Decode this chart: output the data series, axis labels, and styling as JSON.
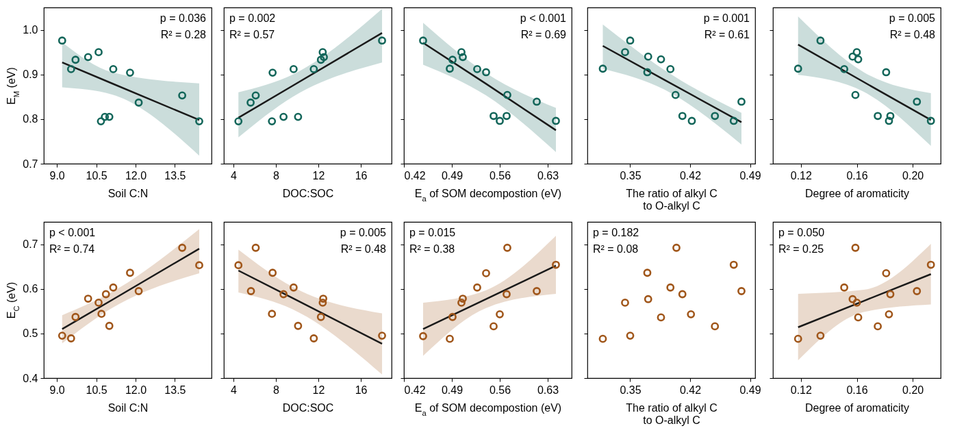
{
  "chart_data": [
    {
      "type": "scatter",
      "ylabel": "E$_{M}$ (eV)",
      "xlabel": "Soil C:N",
      "xlim": [
        8.5,
        14.9
      ],
      "xticks": [
        {
          "value": 9,
          "label": "9.0"
        },
        10.5,
        {
          "value": 12,
          "label": "12.0"
        },
        13.5
      ],
      "ylim": [
        0.7,
        1.05
      ],
      "yticks": [
        0.7,
        0.8,
        0.9,
        {
          "value": 1,
          "label": "1.0"
        }
      ],
      "annotations": [
        "p = 0.036",
        "R² = 0.28"
      ],
      "series": [
        {
          "marker": "circle",
          "color": "#13665a",
          "x": [
            9.2,
            9.54,
            9.71,
            10.19,
            10.59,
            10.68,
            10.83,
            11.0,
            11.15,
            11.79,
            12.12,
            13.78,
            14.43
          ],
          "values": [
            0.976,
            0.912,
            0.933,
            0.939,
            0.95,
            0.795,
            0.805,
            0.805,
            0.912,
            0.904,
            0.837,
            0.853,
            0.795
          ]
        },
        {
          "type": "line",
          "color": "#1a1a1a",
          "x": [
            9.2,
            11.1,
            14.43
          ],
          "values": [
            0.927,
            0.88,
            0.798
          ],
          "lower": [
            0.871,
            0.855,
            0.718
          ],
          "upper": [
            0.972,
            0.905,
            0.88
          ]
        }
      ]
    },
    {
      "type": "scatter",
      "xlabel": "DOC:SOC",
      "xlim": [
        3.1,
        18.9
      ],
      "xticks": [
        4,
        8,
        12,
        16
      ],
      "ylim": [
        0.7,
        1.05
      ],
      "yticks": [
        0.7,
        0.8,
        0.9,
        1
      ],
      "tick_labels": "x",
      "annotations": [
        "p = 0.002",
        "R² = 0.57"
      ],
      "series": [
        {
          "marker": "circle",
          "color": "#13665a",
          "x": [
            4.47,
            5.62,
            6.1,
            7.69,
            7.63,
            8.72,
            9.67,
            10.09,
            11.57,
            12.41,
            12.24,
            12.52,
            18.0
          ],
          "values": [
            0.795,
            0.837,
            0.853,
            0.904,
            0.795,
            0.805,
            0.912,
            0.805,
            0.912,
            0.95,
            0.933,
            0.939,
            0.976
          ]
        },
        {
          "type": "line",
          "color": "#1a1a1a",
          "x": [
            4.47,
            9.6,
            18.0
          ],
          "values": [
            0.803,
            0.875,
            0.993
          ],
          "lower": [
            0.759,
            0.85,
            0.927
          ],
          "upper": [
            0.86,
            0.9,
            1.047
          ]
        }
      ]
    },
    {
      "type": "scatter",
      "xlabel": "E$_{a}$ of SOM decompostion (eV)",
      "xlim": [
        0.42,
        0.665
      ],
      "xticks": [
        0.42,
        0.49,
        0.56,
        0.63
      ],
      "ylim": [
        0.7,
        1.05
      ],
      "yticks": [
        0.7,
        0.8,
        0.9,
        1
      ],
      "tick_labels": "x",
      "annotations": [
        "p < 0.001",
        "R² = 0.69"
      ],
      "series": [
        {
          "marker": "circle",
          "color": "#13665a",
          "x": [
            0.448,
            0.487,
            0.491,
            0.504,
            0.506,
            0.527,
            0.54,
            0.571,
            0.551,
            0.56,
            0.57,
            0.614,
            0.642
          ],
          "values": [
            0.976,
            0.913,
            0.933,
            0.95,
            0.939,
            0.912,
            0.905,
            0.854,
            0.807,
            0.796,
            0.807,
            0.839,
            0.796
          ]
        },
        {
          "type": "line",
          "color": "#1a1a1a",
          "x": [
            0.448,
            0.54,
            0.642
          ],
          "values": [
            0.971,
            0.879,
            0.775
          ],
          "lower": [
            0.922,
            0.853,
            0.726
          ],
          "upper": [
            1.016,
            0.903,
            0.825
          ]
        }
      ]
    },
    {
      "type": "scatter",
      "xlabel": "The ratio of alkyl C\nto O-alkyl C",
      "xlim": [
        0.3,
        0.496
      ],
      "xticks": [
        0.35,
        0.42,
        0.49
      ],
      "ylim": [
        0.7,
        1.05
      ],
      "yticks": [
        0.7,
        0.8,
        0.9,
        1
      ],
      "tick_labels": "x",
      "annotations": [
        "p = 0.001",
        "R² = 0.61"
      ],
      "series": [
        {
          "marker": "circle",
          "color": "#13665a",
          "x": [
            0.318,
            0.344,
            0.35,
            0.371,
            0.37,
            0.386,
            0.397,
            0.403,
            0.411,
            0.422,
            0.449,
            0.471,
            0.48
          ],
          "values": [
            0.913,
            0.95,
            0.976,
            0.94,
            0.905,
            0.934,
            0.912,
            0.854,
            0.807,
            0.796,
            0.807,
            0.796,
            0.839
          ]
        },
        {
          "type": "line",
          "color": "#1a1a1a",
          "x": [
            0.318,
            0.39,
            0.48
          ],
          "values": [
            0.964,
            0.888,
            0.793
          ],
          "lower": [
            0.913,
            0.866,
            0.743
          ],
          "upper": [
            1.012,
            0.91,
            0.814
          ]
        }
      ]
    },
    {
      "type": "scatter",
      "xlabel": "Degree of aromaticity",
      "xlim": [
        0.1,
        0.22
      ],
      "xticks": [
        0.12,
        0.16,
        {
          "value": 0.2,
          "label": "0.20"
        }
      ],
      "ylim": [
        0.7,
        1.05
      ],
      "yticks": [
        0.7,
        0.8,
        0.9,
        1
      ],
      "tick_labels": "x",
      "annotations": [
        "p = 0.005",
        "R² = 0.48"
      ],
      "series": [
        {
          "marker": "circle",
          "color": "#13665a",
          "x": [
            0.118,
            0.134,
            0.151,
            0.16,
            0.157,
            0.161,
            0.159,
            0.181,
            0.175,
            0.184,
            0.183,
            0.203,
            0.213
          ],
          "values": [
            0.913,
            0.976,
            0.912,
            0.95,
            0.94,
            0.934,
            0.854,
            0.905,
            0.807,
            0.807,
            0.796,
            0.839,
            0.796
          ]
        },
        {
          "type": "line",
          "color": "#1a1a1a",
          "x": [
            0.118,
            0.165,
            0.213
          ],
          "values": [
            0.967,
            0.883,
            0.798
          ],
          "lower": [
            0.899,
            0.861,
            0.74
          ],
          "upper": [
            1.03,
            0.905,
            0.858
          ]
        }
      ]
    },
    {
      "type": "scatter",
      "ylabel": "E$_{C}$ (eV)",
      "xlabel": "Soil C:N",
      "xlim": [
        8.5,
        14.9
      ],
      "xticks": [
        {
          "value": 9,
          "label": "9.0"
        },
        10.5,
        {
          "value": 12,
          "label": "12.0"
        },
        13.5
      ],
      "ylim": [
        0.4,
        0.75
      ],
      "yticks": [
        0.4,
        0.5,
        0.6,
        0.7
      ],
      "annotations": [
        "p < 0.001",
        "R² = 0.74"
      ],
      "series": [
        {
          "marker": "circle",
          "color": "#a0561a",
          "x": [
            9.2,
            9.54,
            9.71,
            10.19,
            10.59,
            10.7,
            10.87,
            11.0,
            11.15,
            11.79,
            12.12,
            13.78,
            14.43
          ],
          "values": [
            0.495,
            0.489,
            0.537,
            0.578,
            0.569,
            0.544,
            0.588,
            0.517,
            0.603,
            0.636,
            0.595,
            0.692,
            0.653
          ]
        },
        {
          "type": "line",
          "color": "#1a1a1a",
          "x": [
            9.2,
            11.1,
            14.43
          ],
          "values": [
            0.51,
            0.575,
            0.69
          ],
          "lower": [
            0.478,
            0.557,
            0.635
          ],
          "upper": [
            0.541,
            0.593,
            0.734
          ]
        }
      ]
    },
    {
      "type": "scatter",
      "xlabel": "DOC:SOC",
      "xlim": [
        3.1,
        18.9
      ],
      "xticks": [
        4,
        8,
        12,
        16
      ],
      "ylim": [
        0.4,
        0.75
      ],
      "yticks": [
        0.4,
        0.5,
        0.6,
        0.7
      ],
      "tick_labels": "x",
      "annotations": [
        "p = 0.005",
        "R² = 0.48"
      ],
      "series": [
        {
          "marker": "circle",
          "color": "#a0561a",
          "x": [
            4.47,
            5.65,
            6.1,
            7.69,
            7.63,
            8.72,
            9.67,
            10.09,
            11.57,
            12.46,
            12.41,
            12.24,
            18.0
          ],
          "values": [
            0.653,
            0.595,
            0.692,
            0.636,
            0.544,
            0.588,
            0.603,
            0.517,
            0.489,
            0.578,
            0.569,
            0.537,
            0.495
          ]
        },
        {
          "type": "line",
          "color": "#1a1a1a",
          "x": [
            4.47,
            9.6,
            18.0
          ],
          "values": [
            0.641,
            0.579,
            0.477
          ],
          "lower": [
            0.592,
            0.554,
            0.408
          ],
          "upper": [
            0.688,
            0.604,
            0.545
          ]
        }
      ]
    },
    {
      "type": "scatter",
      "xlabel": "E$_{a}$ of SOM decompostion (eV)",
      "xlim": [
        0.42,
        0.665
      ],
      "xticks": [
        0.42,
        0.49,
        0.56,
        0.63
      ],
      "ylim": [
        0.4,
        0.75
      ],
      "yticks": [
        0.4,
        0.5,
        0.6,
        0.7
      ],
      "tick_labels": "x",
      "annotations": [
        "p = 0.015",
        "R² = 0.38"
      ],
      "series": [
        {
          "marker": "circle",
          "color": "#a0561a",
          "x": [
            0.448,
            0.487,
            0.491,
            0.506,
            0.504,
            0.527,
            0.54,
            0.571,
            0.57,
            0.56,
            0.551,
            0.614,
            0.642
          ],
          "values": [
            0.494,
            0.488,
            0.537,
            0.578,
            0.569,
            0.603,
            0.635,
            0.692,
            0.588,
            0.543,
            0.516,
            0.595,
            0.654
          ]
        },
        {
          "type": "line",
          "color": "#1a1a1a",
          "x": [
            0.448,
            0.54,
            0.642
          ],
          "values": [
            0.51,
            0.577,
            0.652
          ],
          "lower": [
            0.45,
            0.557,
            0.589
          ],
          "upper": [
            0.569,
            0.597,
            0.719
          ]
        }
      ]
    },
    {
      "type": "scatter",
      "xlabel": "The ratio of alkyl C\nto O-alkyl C",
      "xlim": [
        0.3,
        0.496
      ],
      "xticks": [
        0.35,
        0.42,
        0.49
      ],
      "ylim": [
        0.4,
        0.75
      ],
      "yticks": [
        0.4,
        0.5,
        0.6,
        0.7
      ],
      "tick_labels": "x",
      "annotations": [
        "p = 0.182",
        "R² = 0.08"
      ],
      "series": [
        {
          "marker": "circle",
          "color": "#a0561a",
          "x": [
            0.318,
            0.344,
            0.35,
            0.37,
            0.371,
            0.386,
            0.397,
            0.404,
            0.411,
            0.421,
            0.449,
            0.471,
            0.48
          ],
          "values": [
            0.488,
            0.569,
            0.495,
            0.636,
            0.577,
            0.536,
            0.603,
            0.692,
            0.588,
            0.543,
            0.516,
            0.654,
            0.595
          ]
        }
      ]
    },
    {
      "type": "scatter",
      "xlabel": "Degree of aromaticity",
      "xlim": [
        0.1,
        0.22
      ],
      "xticks": [
        0.12,
        0.16,
        {
          "value": 0.2,
          "label": "0.20"
        }
      ],
      "ylim": [
        0.4,
        0.75
      ],
      "yticks": [
        0.4,
        0.5,
        0.6,
        0.7
      ],
      "tick_labels": "x",
      "annotations": [
        "p = 0.050",
        "R² = 0.25"
      ],
      "series": [
        {
          "marker": "circle",
          "color": "#a0561a",
          "x": [
            0.118,
            0.134,
            0.151,
            0.159,
            0.157,
            0.16,
            0.161,
            0.181,
            0.184,
            0.175,
            0.183,
            0.203,
            0.213
          ],
          "values": [
            0.488,
            0.495,
            0.603,
            0.692,
            0.577,
            0.569,
            0.536,
            0.635,
            0.588,
            0.516,
            0.543,
            0.595,
            0.654
          ]
        },
        {
          "type": "line",
          "color": "#1a1a1a",
          "x": [
            0.118,
            0.165,
            0.213
          ],
          "values": [
            0.514,
            0.573,
            0.633
          ],
          "lower": [
            0.44,
            0.548,
            0.565
          ],
          "upper": [
            0.589,
            0.598,
            0.701
          ]
        }
      ]
    }
  ]
}
